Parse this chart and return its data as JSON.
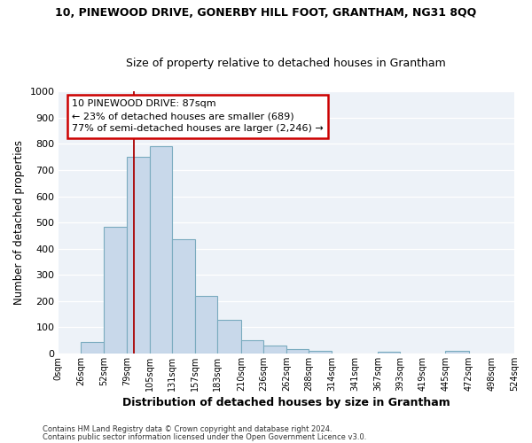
{
  "title": "10, PINEWOOD DRIVE, GONERBY HILL FOOT, GRANTHAM, NG31 8QQ",
  "subtitle": "Size of property relative to detached houses in Grantham",
  "xlabel": "Distribution of detached houses by size in Grantham",
  "ylabel": "Number of detached properties",
  "bar_color": "#c8d8ea",
  "bar_edge_color": "#7aabbf",
  "bg_color": "#edf2f8",
  "grid_color": "white",
  "vline_x": 87,
  "vline_color": "#aa0000",
  "bin_edges": [
    0,
    26,
    52,
    79,
    105,
    131,
    157,
    183,
    210,
    236,
    262,
    288,
    314,
    341,
    367,
    393,
    419,
    445,
    472,
    498,
    524
  ],
  "bar_heights": [
    0,
    45,
    485,
    750,
    790,
    435,
    220,
    128,
    52,
    30,
    18,
    10,
    0,
    0,
    8,
    0,
    0,
    10,
    0,
    0
  ],
  "ylim": [
    0,
    1000
  ],
  "yticks": [
    0,
    100,
    200,
    300,
    400,
    500,
    600,
    700,
    800,
    900,
    1000
  ],
  "annotation_line1": "10 PINEWOOD DRIVE: 87sqm",
  "annotation_line2": "← 23% of detached houses are smaller (689)",
  "annotation_line3": "77% of semi-detached houses are larger (2,246) →",
  "annotation_box_color": "white",
  "annotation_box_edge_color": "#cc0000",
  "footer1": "Contains HM Land Registry data © Crown copyright and database right 2024.",
  "footer2": "Contains public sector information licensed under the Open Government Licence v3.0.",
  "x_tick_labels": [
    "0sqm",
    "26sqm",
    "52sqm",
    "79sqm",
    "105sqm",
    "131sqm",
    "157sqm",
    "183sqm",
    "210sqm",
    "236sqm",
    "262sqm",
    "288sqm",
    "314sqm",
    "341sqm",
    "367sqm",
    "393sqm",
    "419sqm",
    "445sqm",
    "472sqm",
    "498sqm",
    "524sqm"
  ]
}
